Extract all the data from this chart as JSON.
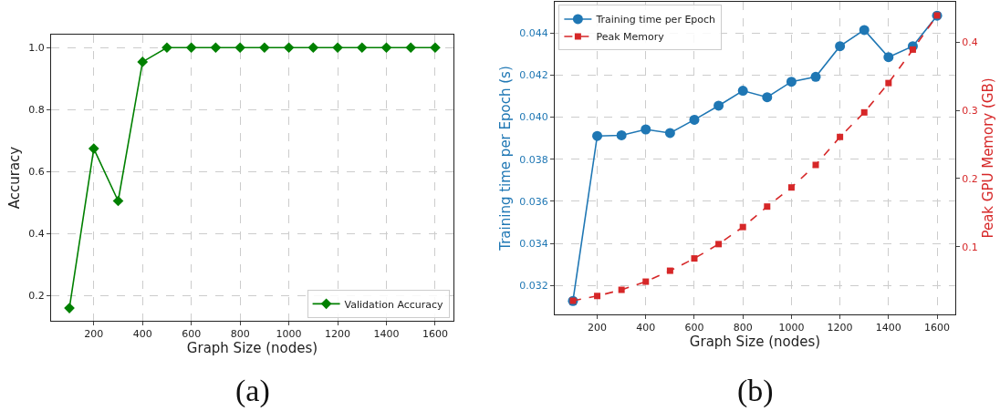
{
  "chart_data": [
    {
      "type": "line",
      "xlabel": "Graph Size (nodes)",
      "ylabel": "Accuracy",
      "annotations": [
        "(a)"
      ],
      "x": [
        100,
        200,
        300,
        400,
        500,
        600,
        700,
        800,
        900,
        1000,
        1100,
        1200,
        1300,
        1400,
        1500,
        1600
      ],
      "series": [
        {
          "name": "Validation Accuracy",
          "color": "#008000",
          "values": [
            0.159,
            0.674,
            0.505,
            0.954,
            1.0,
            1.0,
            1.0,
            1.0,
            1.0,
            1.0,
            1.0,
            1.0,
            1.0,
            1.0,
            1.0,
            1.0
          ]
        }
      ],
      "xlim": [
        25,
        1675
      ],
      "xticks": [
        200,
        400,
        600,
        800,
        1000,
        1200,
        1400,
        1600
      ],
      "ylim": [
        0.118,
        1.042
      ],
      "yticks": [
        0.2,
        0.4,
        0.6,
        0.8,
        {
          "value": 1,
          "label": "1.0"
        }
      ],
      "grid": true,
      "legend": "bottom right",
      "marker": "diamond",
      "line_style": "solid"
    },
    {
      "type": "line",
      "xlabel": "Graph Size (nodes)",
      "ylabel": "Training time per Epoch (s)",
      "y2label": "Peak GPU Memory (GB)",
      "annotations": [
        "(b)"
      ],
      "x": [
        100,
        200,
        300,
        400,
        500,
        600,
        700,
        800,
        900,
        1000,
        1100,
        1200,
        1300,
        1400,
        1500,
        1600
      ],
      "series": [
        {
          "name": "Training time per Epoch",
          "color": "#1f77b4",
          "values": [
            0.03126,
            0.03911,
            0.03914,
            0.03942,
            0.03925,
            0.03988,
            0.04055,
            0.04126,
            0.04095,
            0.04169,
            0.04192,
            0.04338,
            0.04415,
            0.04286,
            0.04338,
            0.04483
          ]
        },
        {
          "name": "Peak Memory",
          "color": "#d62728",
          "axis": "y2",
          "marker": "square",
          "line_style": "dashed",
          "values": [
            0.021,
            0.028,
            0.037,
            0.049,
            0.065,
            0.083,
            0.104,
            0.129,
            0.159,
            0.187,
            0.22,
            0.261,
            0.297,
            0.34,
            0.389,
            0.439
          ]
        }
      ],
      "xlim": [
        25,
        1675
      ],
      "xticks": [
        200,
        400,
        600,
        800,
        1000,
        1200,
        1400,
        1600
      ],
      "ylim": [
        0.03062,
        0.04549
      ],
      "yticks": [
        0.032,
        0.034,
        0.036,
        0.038,
        {
          "value": 0.04,
          "label": "0.040"
        },
        0.042,
        0.044
      ],
      "y2lim": [
        0.001,
        0.459
      ],
      "y2ticks": [
        0.1,
        0.2,
        0.3,
        0.4
      ],
      "grid": true,
      "legend": "top left",
      "marker": "circle",
      "line_style": "solid"
    }
  ]
}
